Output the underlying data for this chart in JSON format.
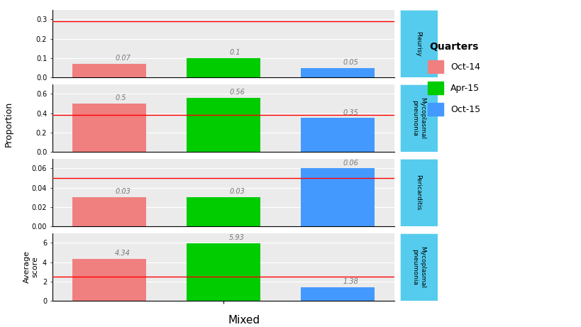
{
  "quarters": [
    "Oct-14",
    "Apr-15",
    "Oct-15"
  ],
  "colors": [
    "#F08080",
    "#00CC00",
    "#4499FF"
  ],
  "panels": [
    {
      "title": "Pleurisy",
      "values": [
        0.07,
        0.1,
        0.05
      ],
      "red_line": 0.29,
      "ylim": [
        0,
        0.35
      ],
      "yticks": [
        0.0,
        0.1,
        0.2,
        0.3
      ],
      "ylabel": ""
    },
    {
      "title": "Mycoplasmal\npneumonia",
      "values": [
        0.5,
        0.56,
        0.35
      ],
      "red_line": 0.38,
      "ylim": [
        0,
        0.7
      ],
      "yticks": [
        0.0,
        0.2,
        0.4,
        0.6
      ],
      "ylabel": ""
    },
    {
      "title": "Pericarditis",
      "values": [
        0.03,
        0.03,
        0.06
      ],
      "red_line": 0.05,
      "ylim": [
        0,
        0.07
      ],
      "yticks": [
        0.0,
        0.02,
        0.04,
        0.06
      ],
      "ylabel": ""
    },
    {
      "title": "Mycoplasmal\npneumonia",
      "values": [
        4.34,
        5.93,
        1.38
      ],
      "red_line": 2.5,
      "ylim": [
        0,
        7
      ],
      "yticks": [
        0,
        2,
        4,
        6
      ],
      "ylabel": "Average\nscore"
    }
  ],
  "proportion_ylabel": "Proportion",
  "xlabel": "Mixed",
  "legend_title": "Quarters",
  "legend_labels": [
    "Oct-14",
    "Apr-15",
    "Oct-15"
  ],
  "bar_width": 0.65,
  "face_color": "#EBEBEB",
  "label_color": "#777777",
  "strip_color": "#55CCEE",
  "grid_color": "white"
}
